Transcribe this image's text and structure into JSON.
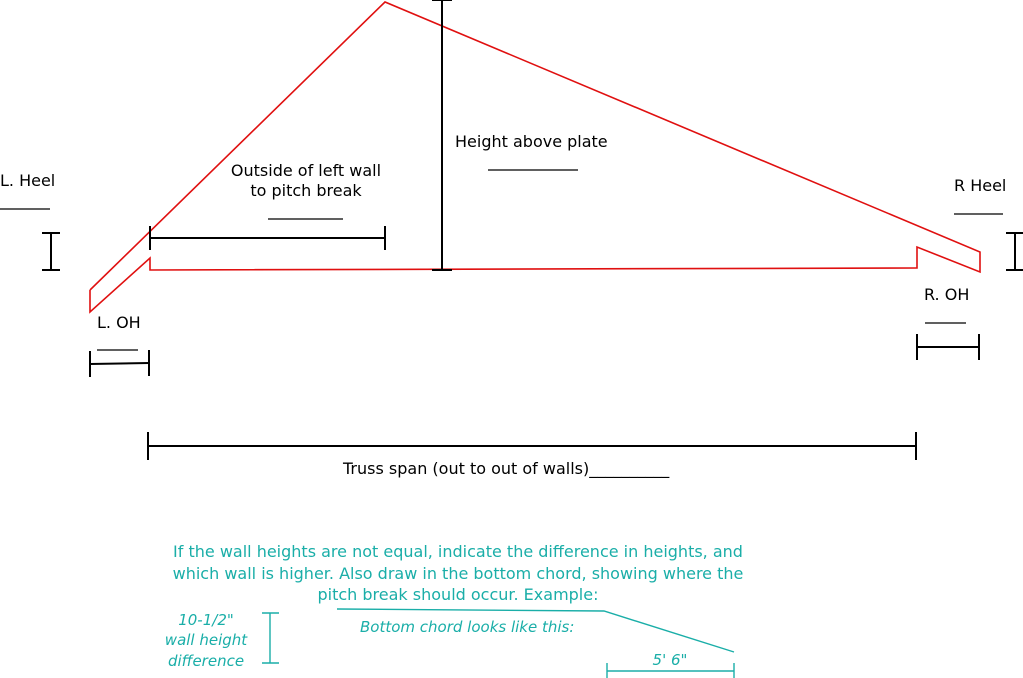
{
  "labels": {
    "left_heel": "L. Heel",
    "right_heel": "R Heel",
    "left_overhang": "L. OH",
    "right_overhang": "R. OH",
    "height_above_plate": "Height above plate",
    "pitch_break_line1": "Outside of left wall",
    "pitch_break_line2": "to pitch break",
    "truss_span": "Truss span (out to out of walls)__________"
  },
  "note": {
    "line1": "If the wall heights are not equal, indicate the difference in heights, and",
    "line2": "which wall is higher. Also draw in the bottom chord, showing where the",
    "line3": "pitch break should occur. Example:"
  },
  "example": {
    "height_line1": "10-1/2\"",
    "height_line2": "wall height",
    "height_line3": "difference",
    "bottom_chord": "Bottom chord looks like this:",
    "break_distance": "5' 6\""
  },
  "colors": {
    "truss": "#e01010",
    "note": "#1aaea8",
    "dimension": "#000000"
  }
}
